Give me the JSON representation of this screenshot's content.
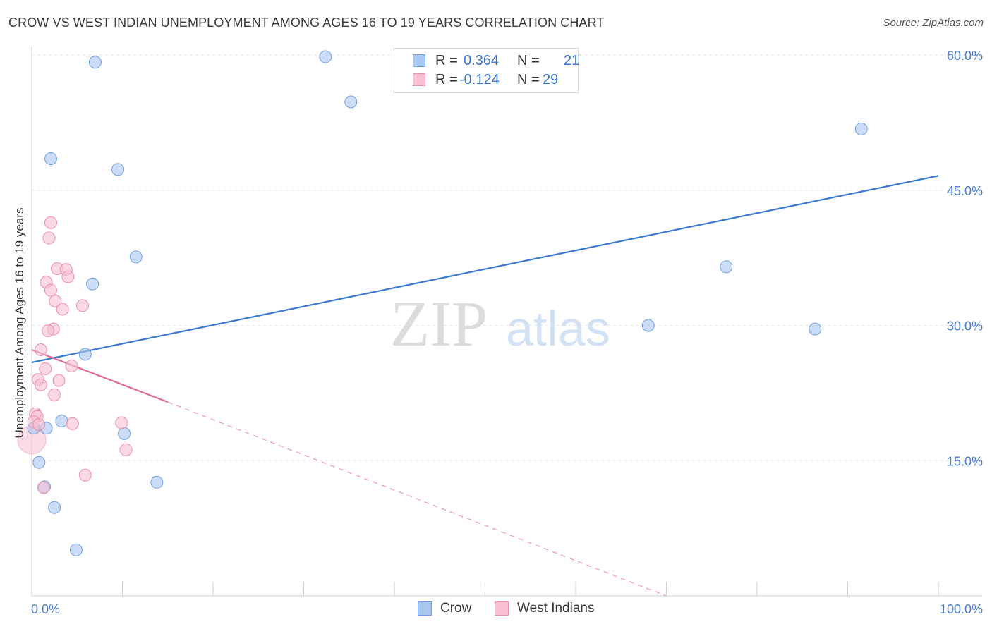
{
  "title": "CROW VS WEST INDIAN UNEMPLOYMENT AMONG AGES 16 TO 19 YEARS CORRELATION CHART",
  "source": "Source: ZipAtlas.com",
  "watermark": {
    "zip": "ZIP",
    "atlas": "atlas"
  },
  "legend": {
    "r_label": "R =",
    "n_label": "N =",
    "rows": [
      {
        "r": "0.364",
        "n": "21",
        "color": "#a9c7f0",
        "border": "#6f9fe0"
      },
      {
        "r": "-0.124",
        "n": "29",
        "color": "#f7bfd0",
        "border": "#ea8fab"
      }
    ]
  },
  "bottom_legend": [
    {
      "label": "Crow",
      "color": "#a9c7f0",
      "border": "#6f9fe0"
    },
    {
      "label": "West Indians",
      "color": "#f7bfd0",
      "border": "#ea8fab"
    }
  ],
  "chart_data": {
    "type": "scatter",
    "title": "CROW VS WEST INDIAN UNEMPLOYMENT AMONG AGES 16 TO 19 YEARS CORRELATION CHART",
    "xlabel": "",
    "ylabel": "Unemployment Among Ages 16 to 19 years",
    "xlim": [
      0,
      100
    ],
    "ylim": [
      0,
      60
    ],
    "x_tick_labels": [
      "0.0%",
      "100.0%"
    ],
    "y_ticks": [
      15,
      30,
      45,
      60
    ],
    "y_tick_labels": [
      "15.0%",
      "30.0%",
      "45.0%",
      "60.0%"
    ],
    "grid": true,
    "series": [
      {
        "name": "Crow",
        "color": "#a9c7f0",
        "stroke": "#6f9fe0",
        "points": [
          [
            7.0,
            59.2
          ],
          [
            32.4,
            59.8
          ],
          [
            35.2,
            54.8
          ],
          [
            2.1,
            48.5
          ],
          [
            9.5,
            47.3
          ],
          [
            91.5,
            51.8
          ],
          [
            11.5,
            37.6
          ],
          [
            6.7,
            34.6
          ],
          [
            76.6,
            36.5
          ],
          [
            5.9,
            26.8
          ],
          [
            68.0,
            30.0
          ],
          [
            86.4,
            29.6
          ],
          [
            0.2,
            18.6
          ],
          [
            1.6,
            18.6
          ],
          [
            3.3,
            19.4
          ],
          [
            10.2,
            18.0
          ],
          [
            0.8,
            14.8
          ],
          [
            1.4,
            12.1
          ],
          [
            13.8,
            12.6
          ],
          [
            2.5,
            9.8
          ],
          [
            4.9,
            5.1
          ]
        ],
        "trend": {
          "x0": 0,
          "y0": 25.9,
          "x1": 100,
          "y1": 46.6
        }
      },
      {
        "name": "West Indians",
        "color": "#f7bfd0",
        "stroke": "#ea8fab",
        "points": [
          [
            2.1,
            41.4
          ],
          [
            1.9,
            39.7
          ],
          [
            2.8,
            36.3
          ],
          [
            3.8,
            36.2
          ],
          [
            4.0,
            35.4
          ],
          [
            1.6,
            34.8
          ],
          [
            2.1,
            33.9
          ],
          [
            2.6,
            32.7
          ],
          [
            3.4,
            31.8
          ],
          [
            5.6,
            32.2
          ],
          [
            2.4,
            29.6
          ],
          [
            1.8,
            29.4
          ],
          [
            1.0,
            27.3
          ],
          [
            4.4,
            25.5
          ],
          [
            1.5,
            25.2
          ],
          [
            0.7,
            24.0
          ],
          [
            3.0,
            23.9
          ],
          [
            1.0,
            23.4
          ],
          [
            2.5,
            22.3
          ],
          [
            0.4,
            20.2
          ],
          [
            0.6,
            19.9
          ],
          [
            0.2,
            19.3
          ],
          [
            0.8,
            19.0
          ],
          [
            4.5,
            19.1
          ],
          [
            9.9,
            19.2
          ],
          [
            0.0,
            17.3
          ],
          [
            10.4,
            16.2
          ],
          [
            5.9,
            13.4
          ],
          [
            1.3,
            12.0
          ]
        ],
        "trend": {
          "x0": 0,
          "y0": 27.3,
          "x1": 15,
          "y1": 21.5
        },
        "trend_dashed": {
          "x0": 15,
          "y0": 21.5,
          "x1": 70,
          "y1": 0.0
        }
      }
    ]
  }
}
